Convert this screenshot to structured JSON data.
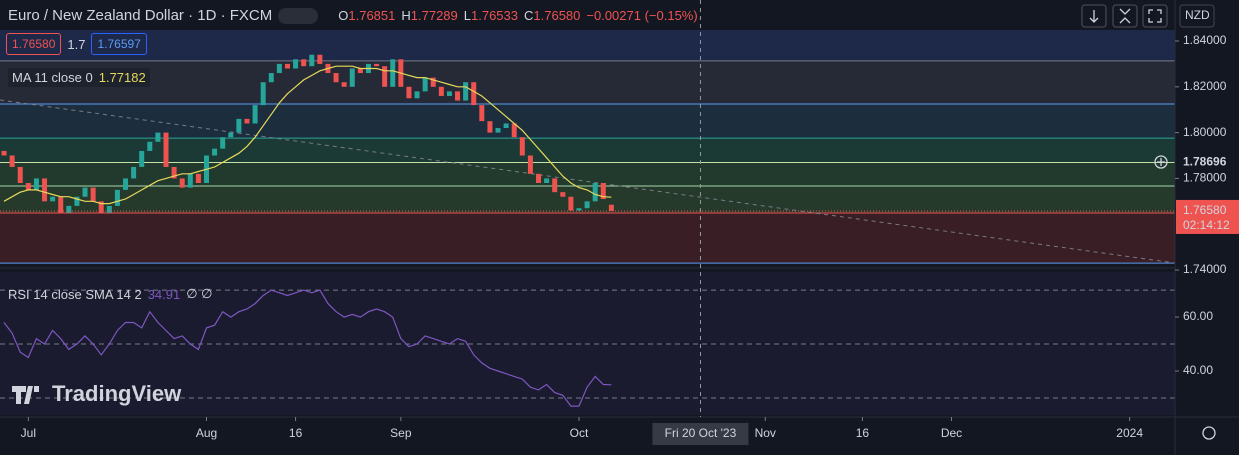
{
  "chart_data": {
    "type": "candlestick",
    "title": "Euro / New Zealand Dollar · 1D · FXCM",
    "ohlc": [
      {
        "key": "O",
        "text": "1.76851"
      },
      {
        "key": "H",
        "text": "1.77289"
      },
      {
        "key": "L",
        "text": "1.76533"
      },
      {
        "key": "C",
        "text": "1.76580"
      }
    ],
    "change": "−0.00271 (−0.15%)",
    "sell": "1.76580",
    "spread": "1.7",
    "buy": "1.76597",
    "currency": "NZD",
    "watermark": "TradingView",
    "up_color": "#26a69a",
    "down_color": "#ef5350",
    "open": [
      1.792,
      1.79,
      1.785,
      1.778,
      1.775,
      1.78,
      1.77,
      1.772,
      1.765,
      1.768,
      1.772,
      1.776,
      1.77,
      1.765,
      1.768,
      1.775,
      1.78,
      1.785,
      1.792,
      1.796,
      1.8,
      1.785,
      1.78,
      1.776,
      1.782,
      1.778,
      1.79,
      1.793,
      1.798,
      1.8,
      1.806,
      1.804,
      1.812,
      1.822,
      1.826,
      1.83,
      1.828,
      1.832,
      1.829,
      1.834,
      1.83,
      1.826,
      1.822,
      1.82,
      1.828,
      1.826,
      1.83,
      1.829,
      1.82,
      1.832,
      1.82,
      1.815,
      1.818,
      1.824,
      1.82,
      1.816,
      1.818,
      1.814,
      1.822,
      1.812,
      1.805,
      1.8,
      1.802,
      1.804,
      1.798,
      1.79,
      1.782,
      1.778,
      1.78,
      1.774,
      1.772,
      1.766,
      1.767,
      1.77,
      1.778,
      1.76851
    ],
    "close": [
      1.79,
      1.785,
      1.778,
      1.775,
      1.78,
      1.77,
      1.772,
      1.765,
      1.768,
      1.772,
      1.776,
      1.77,
      1.765,
      1.768,
      1.775,
      1.78,
      1.785,
      1.792,
      1.796,
      1.8,
      1.785,
      1.78,
      1.776,
      1.782,
      1.778,
      1.79,
      1.793,
      1.798,
      1.8,
      1.806,
      1.804,
      1.812,
      1.822,
      1.826,
      1.83,
      1.828,
      1.832,
      1.829,
      1.834,
      1.83,
      1.826,
      1.822,
      1.82,
      1.828,
      1.826,
      1.83,
      1.829,
      1.82,
      1.832,
      1.82,
      1.815,
      1.818,
      1.824,
      1.82,
      1.816,
      1.818,
      1.814,
      1.822,
      1.812,
      1.805,
      1.8,
      1.802,
      1.804,
      1.798,
      1.79,
      1.782,
      1.778,
      1.78,
      1.774,
      1.772,
      1.766,
      1.767,
      1.77,
      1.778,
      1.771,
      1.7658
    ],
    "ma": {
      "name": "MA 11 close 0",
      "color": "#e6d95a",
      "values": [
        1.77,
        1.772,
        1.774,
        1.775,
        1.775,
        1.774,
        1.773,
        1.772,
        1.772,
        1.771,
        1.77,
        1.77,
        1.769,
        1.769,
        1.77,
        1.771,
        1.773,
        1.775,
        1.777,
        1.779,
        1.78,
        1.781,
        1.782,
        1.782,
        1.783,
        1.784,
        1.785,
        1.787,
        1.789,
        1.791,
        1.794,
        1.798,
        1.803,
        1.808,
        1.813,
        1.817,
        1.82,
        1.823,
        1.825,
        1.827,
        1.828,
        1.829,
        1.829,
        1.829,
        1.828,
        1.828,
        1.828,
        1.827,
        1.827,
        1.826,
        1.825,
        1.824,
        1.824,
        1.823,
        1.822,
        1.821,
        1.82,
        1.82,
        1.818,
        1.816,
        1.813,
        1.81,
        1.807,
        1.804,
        1.801,
        1.797,
        1.793,
        1.789,
        1.785,
        1.781,
        1.778,
        1.776,
        1.775,
        1.773,
        1.772,
        1.77182
      ]
    },
    "levels": [
      {
        "value": 1.8313,
        "color": "#787b86",
        "fill": "#262a36"
      },
      {
        "value": 1.8125,
        "color": "#5b9cf6",
        "fill": "#1c2e3d"
      },
      {
        "value": 1.7976,
        "color": "#26a69a",
        "fill": "#1c3a35"
      },
      {
        "value": 1.78696,
        "color": "#c5e1a5",
        "fill": "#213a2d"
      },
      {
        "value": 1.7767,
        "color": "#a5d6a7",
        "fill": "#263a2c"
      },
      {
        "value": 1.7649,
        "color": "#ef5350",
        "fill": "#3a1e25"
      },
      {
        "value": 1.743,
        "color": "#5b9cf6",
        "fill": "#131722"
      }
    ],
    "top_fill": "#1e2848",
    "last_price": {
      "value": 1.7658,
      "label": "1.76580"
    },
    "countdown": "02:14:12",
    "ylim": [
      1.7422,
      1.8448
    ],
    "yticks": [
      {
        "value": 1.84,
        "label": "1.84000"
      },
      {
        "value": 1.82,
        "label": "1.82000"
      },
      {
        "value": 1.8,
        "label": "1.80000"
      },
      {
        "value": 1.78,
        "label": "1.78000"
      },
      {
        "value": 1.74,
        "label": "1.74000"
      }
    ],
    "xlim": [
      -0.5,
      144.6
    ],
    "xticks": [
      {
        "value": 3,
        "label": "Jul"
      },
      {
        "value": 25,
        "label": "Aug"
      },
      {
        "value": 36,
        "label": "16"
      },
      {
        "value": 49,
        "label": "Sep"
      },
      {
        "value": 71,
        "label": "Oct"
      },
      {
        "value": 94,
        "label": "Nov"
      },
      {
        "value": 106,
        "label": "16"
      },
      {
        "value": 117,
        "label": "Dec"
      },
      {
        "value": 139,
        "label": "2024"
      }
    ],
    "crosshair": {
      "value": 86,
      "label": "Fri 20 Oct '23"
    },
    "rsi": {
      "name": "RSI 14 close SMA 14 2",
      "value_text": "34.91",
      "extra": "∅ ∅",
      "color": "#7e57c2",
      "values": [
        58,
        54,
        47,
        45,
        52,
        50,
        55,
        52,
        48,
        50,
        53,
        50,
        46,
        50,
        55,
        58,
        58,
        56,
        62,
        58,
        55,
        52,
        53,
        50,
        48,
        56,
        57,
        62,
        60,
        62,
        63,
        65,
        68,
        70,
        69,
        68,
        69,
        70,
        69,
        70,
        65,
        62,
        60,
        61,
        60,
        62,
        63,
        62,
        60,
        52,
        49,
        50,
        53,
        52,
        51,
        50,
        52,
        51,
        46,
        43,
        41,
        40,
        39,
        38,
        37,
        34,
        33,
        35,
        32,
        31,
        27,
        27,
        34,
        38,
        35,
        34.91
      ],
      "ylim": [
        23.7,
        76.7
      ],
      "yticks": [
        {
          "value": 60,
          "label": "60.00"
        },
        {
          "value": 40,
          "label": "40.00"
        }
      ],
      "bands": [
        70,
        50,
        30
      ]
    }
  }
}
